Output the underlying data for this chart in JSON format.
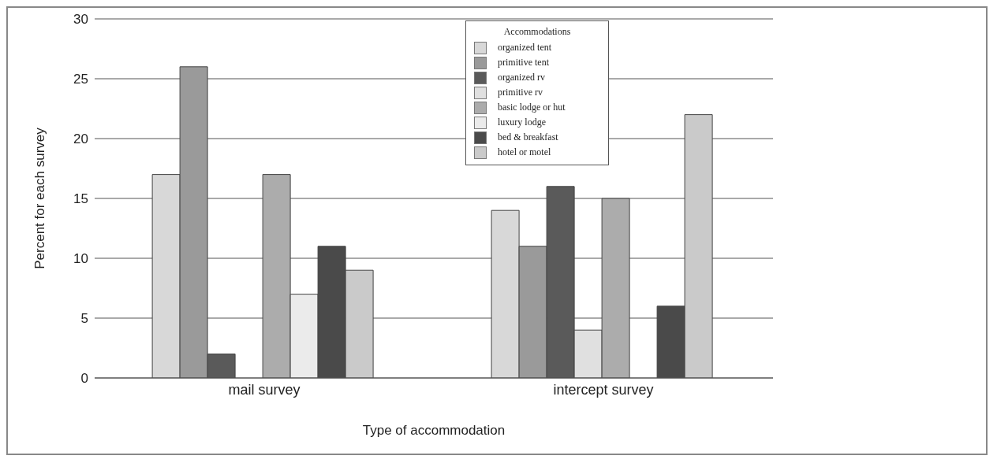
{
  "chart_data": {
    "type": "bar",
    "xlabel": "Type of accommodation",
    "ylabel": "Percent for each survey",
    "legend_title": "Accommodations",
    "categories": [
      "mail survey",
      "intercept survey"
    ],
    "series": [
      {
        "name": "organized tent",
        "color": "#d8d8d8",
        "values": [
          17,
          14
        ]
      },
      {
        "name": "primitive tent",
        "color": "#9a9a9a",
        "values": [
          26,
          11
        ]
      },
      {
        "name": "organized rv",
        "color": "#5a5a5a",
        "values": [
          2,
          16
        ]
      },
      {
        "name": "primitive rv",
        "color": "#e0e0e0",
        "values": [
          0,
          4
        ]
      },
      {
        "name": "basic lodge or hut",
        "color": "#acacac",
        "values": [
          17,
          15
        ]
      },
      {
        "name": "luxury lodge",
        "color": "#ebebeb",
        "values": [
          7,
          0
        ]
      },
      {
        "name": "bed & breakfast",
        "color": "#4a4a4a",
        "values": [
          11,
          6
        ]
      },
      {
        "name": "hotel or motel",
        "color": "#cacaca",
        "values": [
          9,
          22
        ]
      }
    ],
    "ylim": [
      0,
      30
    ],
    "yticks": [
      0,
      5,
      10,
      15,
      20,
      25,
      30
    ],
    "grid": "y",
    "legend": "top"
  }
}
